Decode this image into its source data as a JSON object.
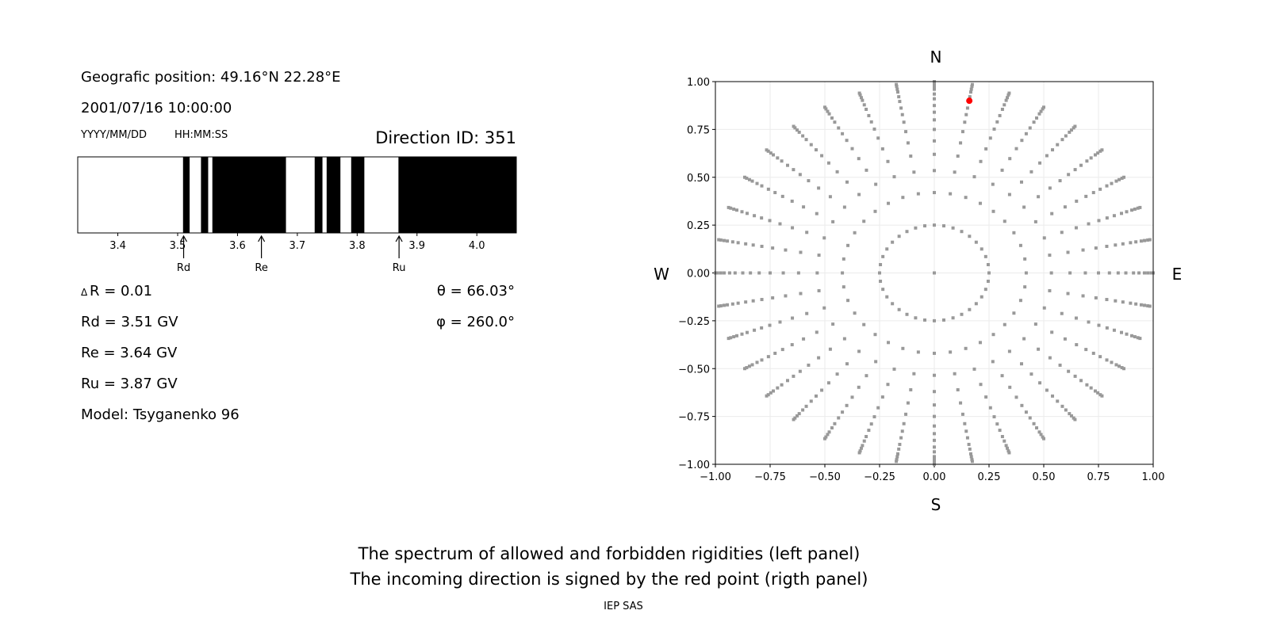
{
  "left_panel": {
    "position": "Geografic position: 49.16°N 22.28°E",
    "datetime": "2001/07/16 10:00:00",
    "date_format": "YYYY/MM/DD",
    "time_format": "HH:MM:SS",
    "direction_id": "Direction ID: 351",
    "delta_r": "R = 0.01",
    "delta_symbol": "Δ",
    "rd": "Rd = 3.51 GV",
    "re": "Re = 3.64 GV",
    "ru": "Ru = 3.87 GV",
    "model": "Model: Tsyganenko 96",
    "theta": "θ = 66.03°",
    "phi": "φ = 260.0°"
  },
  "right_panel": {
    "north": "N",
    "south": "S",
    "west": "W",
    "east": "E"
  },
  "caption": {
    "line1": "The spectrum of allowed and forbidden rigidities (left panel)",
    "line2": "The incoming direction is signed by the red point (rigth panel)",
    "credit": "IEP SAS"
  },
  "chart_data": [
    {
      "type": "bar",
      "xlim": [
        3.333,
        4.066
      ],
      "xticks": [
        "3.4",
        "3.5",
        "3.6",
        "3.7",
        "3.8",
        "3.9",
        "4.0"
      ],
      "forbidden_intervals": [
        [
          3.509,
          3.52
        ],
        [
          3.539,
          3.551
        ],
        [
          3.558,
          3.681
        ],
        [
          3.729,
          3.742
        ],
        [
          3.749,
          3.772
        ],
        [
          3.79,
          3.812
        ],
        [
          3.869,
          4.066
        ]
      ],
      "colors": {
        "forbidden": "#000000",
        "allowed": "#ffffff"
      },
      "markers": [
        {
          "label": "Rd",
          "x": 3.51
        },
        {
          "label": "Re",
          "x": 3.64
        },
        {
          "label": "Ru",
          "x": 3.87
        }
      ]
    },
    {
      "type": "scatter",
      "xlim": [
        -1,
        1
      ],
      "ylim": [
        -1,
        1
      ],
      "xticks": [
        "−1.00",
        "−0.75",
        "−0.50",
        "−0.25",
        "0.00",
        "0.25",
        "0.50",
        "0.75",
        "1.00"
      ],
      "yticks": [
        "−1.00",
        "−0.75",
        "−0.50",
        "−0.25",
        "0.00",
        "0.25",
        "0.50",
        "0.75",
        "1.00"
      ],
      "grid": true,
      "azimuth_step_deg": 10,
      "radii": [
        0.25,
        0.42,
        0.535,
        0.62,
        0.69,
        0.75,
        0.8,
        0.84,
        0.875,
        0.91,
        0.935,
        0.96,
        0.975,
        0.99,
        1.0
      ],
      "center_point": [
        0,
        0
      ],
      "point_color": "#999999",
      "highlight": {
        "x": 0.16,
        "y": 0.9,
        "color": "#ff0000"
      }
    }
  ]
}
